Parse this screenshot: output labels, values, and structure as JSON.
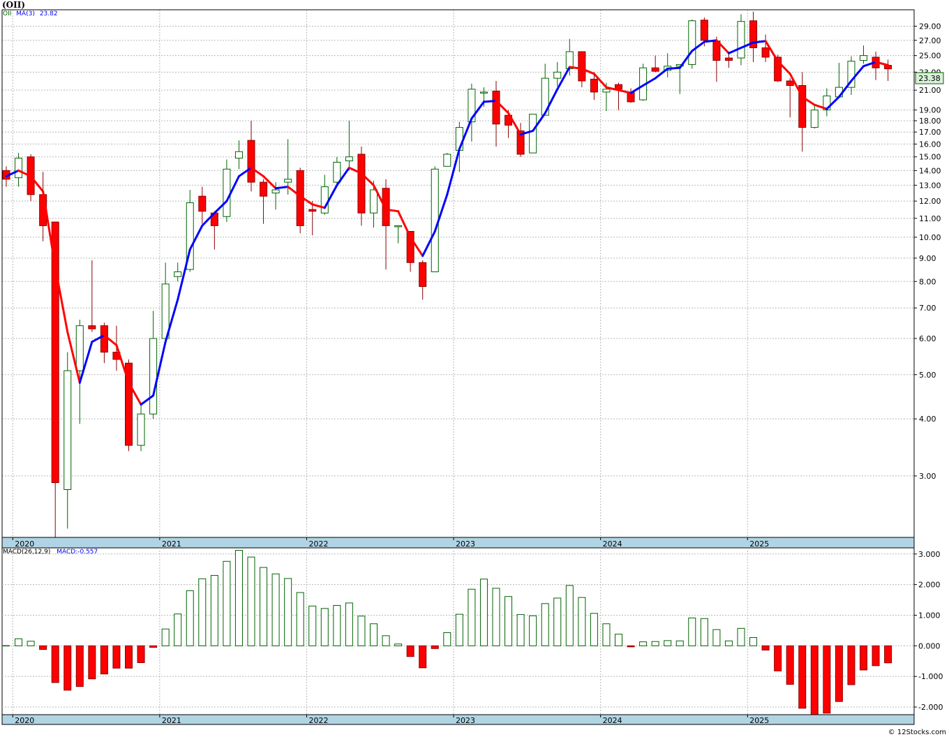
{
  "title": "(OII)",
  "price_legend": {
    "symbol": "OII",
    "ma_label": "MA(3)",
    "ma_value": "23.82"
  },
  "macd_legend": {
    "label": "MACD(26,12,9)",
    "value_label": "MACD:-0.557"
  },
  "last_price": "23.38",
  "credit": "© 12Stocks.com",
  "colors": {
    "up": "#006400",
    "down": "#ff0000",
    "ma_up": "#0000ff",
    "ma_down": "#ff0000",
    "axis_band": "#b0d4e4"
  },
  "chart_data": [
    {
      "type": "candlestick",
      "period": "monthly",
      "scale": "log",
      "ylim": [
        2.2,
        31.5
      ],
      "yticks": [
        "3.00",
        "4.00",
        "5.00",
        "6.00",
        "7.00",
        "8.00",
        "9.00",
        "10.00",
        "11.00",
        "12.00",
        "13.00",
        "14.00",
        "15.00",
        "16.00",
        "17.00",
        "18.00",
        "19.00",
        "21.00",
        "23.00",
        "25.00",
        "27.00",
        "29.00"
      ],
      "year_labels": [
        "2020",
        "2021",
        "2022",
        "2023",
        "2024",
        "2025"
      ],
      "start": "2019-12",
      "ohlc": [
        [
          14.0,
          14.3,
          12.9,
          13.4
        ],
        [
          13.5,
          15.3,
          12.9,
          14.9
        ],
        [
          15.0,
          15.2,
          12.0,
          12.4
        ],
        [
          12.4,
          13.9,
          9.8,
          10.6
        ],
        [
          10.8,
          10.8,
          2.0,
          2.9
        ],
        [
          2.8,
          5.6,
          2.3,
          5.1
        ],
        [
          5.1,
          6.6,
          3.9,
          6.4
        ],
        [
          6.4,
          8.9,
          6.2,
          6.3
        ],
        [
          6.4,
          6.5,
          5.3,
          5.6
        ],
        [
          5.6,
          6.4,
          5.1,
          5.4
        ],
        [
          5.3,
          5.4,
          3.4,
          3.5
        ],
        [
          3.5,
          4.3,
          3.4,
          4.1
        ],
        [
          4.1,
          6.9,
          4.0,
          6.0
        ],
        [
          6.0,
          8.8,
          6.0,
          7.9
        ],
        [
          8.2,
          8.8,
          8.0,
          8.4
        ],
        [
          8.5,
          12.7,
          8.4,
          11.9
        ],
        [
          12.3,
          12.9,
          10.7,
          11.4
        ],
        [
          11.3,
          11.4,
          9.4,
          10.6
        ],
        [
          11.1,
          14.8,
          10.8,
          14.1
        ],
        [
          14.9,
          16.3,
          14.1,
          15.4
        ],
        [
          16.3,
          18.0,
          12.6,
          13.2
        ],
        [
          13.2,
          13.4,
          10.7,
          12.3
        ],
        [
          12.5,
          13.2,
          11.5,
          12.7
        ],
        [
          13.2,
          16.4,
          12.4,
          13.4
        ],
        [
          14.0,
          14.2,
          10.2,
          10.6
        ],
        [
          11.5,
          12.0,
          10.1,
          11.4
        ],
        [
          11.3,
          13.7,
          11.2,
          12.9
        ],
        [
          13.2,
          15.0,
          13.0,
          14.6
        ],
        [
          14.7,
          18.0,
          14.0,
          15.0
        ],
        [
          15.2,
          15.8,
          10.6,
          11.3
        ],
        [
          11.3,
          13.3,
          10.5,
          12.7
        ],
        [
          12.8,
          13.4,
          8.5,
          10.6
        ],
        [
          10.6,
          10.6,
          9.7,
          10.6
        ],
        [
          10.3,
          10.3,
          8.4,
          8.8
        ],
        [
          8.8,
          8.9,
          7.3,
          7.8
        ],
        [
          8.4,
          14.3,
          8.4,
          14.1
        ],
        [
          14.3,
          15.3,
          14.3,
          15.2
        ],
        [
          15.5,
          17.9,
          13.9,
          17.4
        ],
        [
          17.9,
          21.7,
          16.2,
          21.1
        ],
        [
          20.8,
          21.3,
          19.3,
          20.8
        ],
        [
          20.9,
          22.0,
          15.8,
          17.7
        ],
        [
          18.5,
          19.0,
          16.5,
          17.6
        ],
        [
          17.1,
          17.8,
          15.0,
          15.2
        ],
        [
          15.3,
          18.6,
          15.3,
          18.6
        ],
        [
          18.5,
          24.0,
          18.5,
          22.3
        ],
        [
          22.3,
          24.2,
          21.4,
          23.0
        ],
        [
          23.4,
          27.2,
          22.6,
          25.5
        ],
        [
          25.5,
          25.5,
          21.3,
          22.0
        ],
        [
          22.2,
          23.0,
          20.0,
          20.8
        ],
        [
          20.8,
          21.8,
          18.9,
          21.1
        ],
        [
          21.6,
          21.8,
          19.0,
          21.1
        ],
        [
          20.8,
          21.2,
          19.7,
          19.8
        ],
        [
          20.0,
          24.0,
          19.9,
          23.5
        ],
        [
          23.5,
          25.0,
          23.0,
          23.1
        ],
        [
          23.2,
          25.3,
          22.4,
          23.7
        ],
        [
          23.7,
          23.8,
          20.6,
          23.9
        ],
        [
          23.9,
          30.0,
          23.4,
          29.8
        ],
        [
          29.9,
          30.3,
          26.2,
          27.0
        ],
        [
          26.9,
          27.5,
          21.9,
          24.4
        ],
        [
          24.7,
          25.5,
          23.5,
          24.4
        ],
        [
          24.7,
          30.8,
          23.8,
          29.7
        ],
        [
          29.8,
          31.2,
          24.2,
          26.0
        ],
        [
          26.0,
          27.8,
          24.2,
          24.8
        ],
        [
          24.8,
          25.1,
          21.9,
          22.0
        ],
        [
          22.0,
          22.3,
          18.3,
          21.5
        ],
        [
          21.5,
          23.0,
          15.4,
          17.4
        ],
        [
          17.4,
          19.4,
          17.3,
          19.0
        ],
        [
          19.0,
          21.2,
          18.4,
          20.4
        ],
        [
          20.3,
          24.1,
          20.3,
          21.3
        ],
        [
          21.3,
          24.9,
          20.5,
          24.3
        ],
        [
          24.4,
          26.3,
          24.0,
          25.0
        ],
        [
          24.8,
          25.5,
          22.1,
          23.5
        ],
        [
          23.8,
          24.5,
          22.0,
          23.38
        ]
      ],
      "ma3": [
        13.6,
        14.0,
        13.6,
        12.6,
        8.6,
        6.2,
        4.8,
        5.9,
        6.1,
        5.8,
        4.8,
        4.3,
        4.5,
        5.9,
        7.3,
        9.4,
        10.6,
        11.3,
        12.0,
        13.6,
        14.2,
        13.6,
        12.8,
        12.9,
        12.3,
        11.8,
        11.6,
        13.0,
        14.2,
        13.8,
        13.0,
        11.5,
        11.4,
        10.0,
        9.1,
        10.3,
        12.4,
        15.6,
        18.2,
        19.8,
        19.9,
        18.7,
        16.8,
        17.1,
        18.7,
        21.1,
        23.6,
        23.4,
        22.8,
        21.3,
        21.0,
        20.7,
        21.5,
        22.3,
        23.4,
        23.5,
        25.6,
        26.8,
        27.0,
        25.3,
        26.0,
        26.7,
        26.9,
        24.3,
        22.8,
        20.3,
        19.5,
        19.1,
        20.3,
        22.0,
        23.7,
        24.2,
        23.82
      ],
      "series": [
        {
          "name": "MA(3)"
        }
      ]
    },
    {
      "type": "bar",
      "name": "MACD(26,12,9)",
      "ylim": [
        -2.25,
        3.2
      ],
      "yticks": [
        "-2.000",
        "-1.000",
        "0.000",
        "1.000",
        "2.000",
        "3.000"
      ],
      "year_labels": [
        "2020",
        "2021",
        "2022",
        "2023",
        "2024",
        "2025"
      ],
      "values": [
        0.0,
        0.23,
        0.15,
        -0.12,
        -1.2,
        -1.45,
        -1.33,
        -1.08,
        -0.92,
        -0.73,
        -0.73,
        -0.55,
        -0.05,
        0.55,
        1.04,
        1.8,
        2.19,
        2.3,
        2.76,
        3.12,
        2.9,
        2.56,
        2.35,
        2.2,
        1.74,
        1.3,
        1.22,
        1.32,
        1.4,
        0.97,
        0.72,
        0.33,
        0.06,
        -0.35,
        -0.72,
        -0.09,
        0.43,
        1.03,
        1.85,
        2.18,
        1.88,
        1.61,
        1.02,
        0.98,
        1.38,
        1.56,
        1.97,
        1.58,
        1.06,
        0.72,
        0.38,
        -0.03,
        0.13,
        0.14,
        0.17,
        0.16,
        0.91,
        0.89,
        0.53,
        0.16,
        0.57,
        0.27,
        -0.14,
        -0.82,
        -1.26,
        -2.04,
        -2.28,
        -2.2,
        -1.82,
        -1.27,
        -0.79,
        -0.65,
        -0.557
      ]
    }
  ]
}
